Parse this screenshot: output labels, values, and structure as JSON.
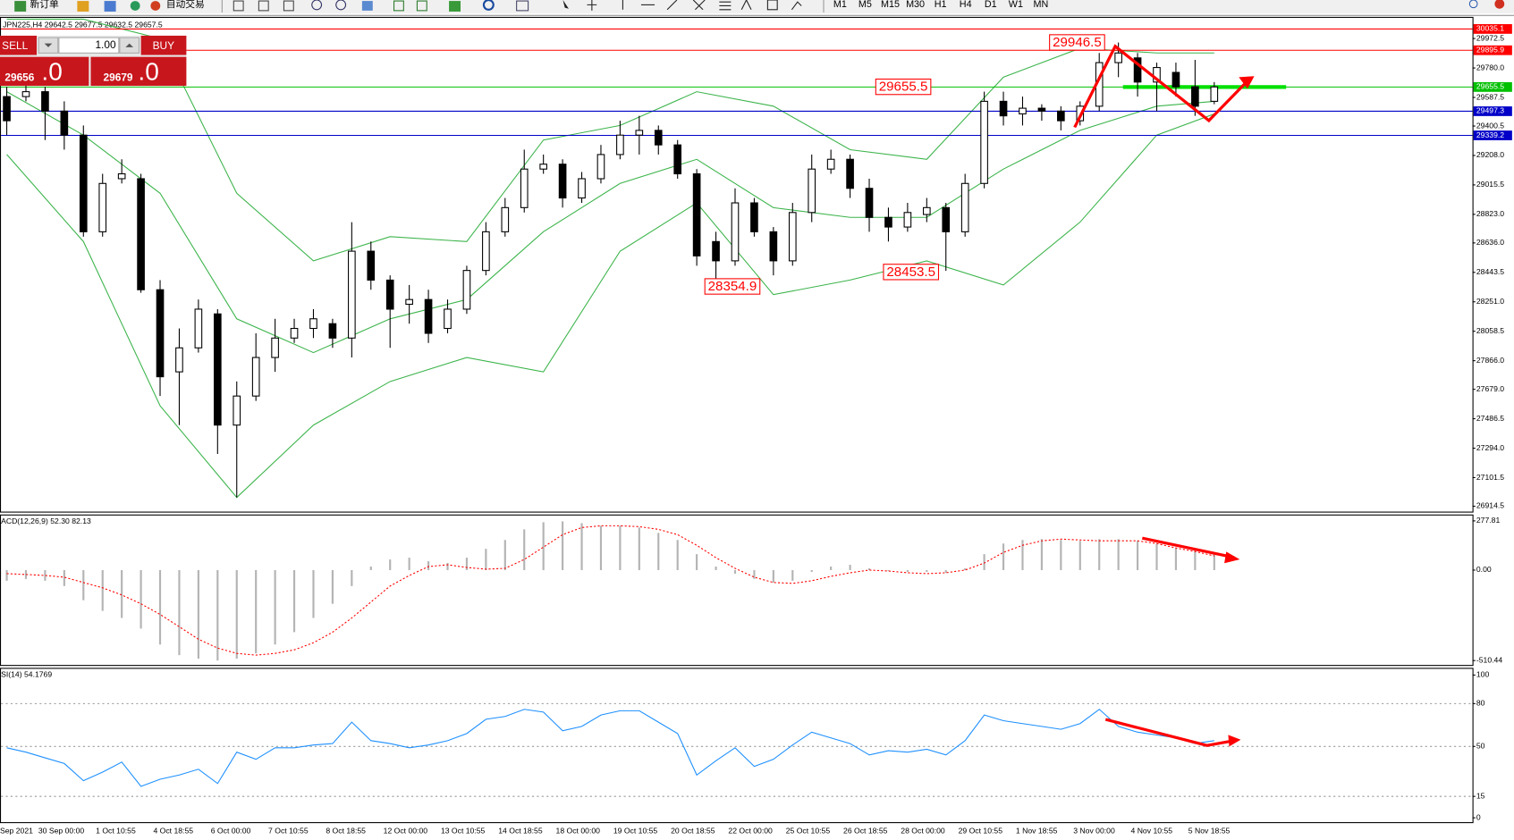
{
  "toolbar": {
    "new_order": "新订单",
    "auto_trading": "自动交易",
    "timeframes": [
      "M1",
      "M5",
      "M15",
      "M30",
      "H1",
      "H4",
      "D1",
      "W1",
      "MN"
    ]
  },
  "trade_panel": {
    "sell_label": "SELL",
    "lot": "1.00",
    "buy_label": "BUY",
    "sell_price": "29656",
    "sell_fraction": ".0",
    "buy_price": "29679",
    "buy_fraction": ".0"
  },
  "chart_data": [
    {
      "type": "candlestick",
      "title": "JPN225,H4  29642.5 29677.5 29632.5 29657.5",
      "categories": [
        "Sep 2021",
        null,
        "30 Sep 00:00",
        null,
        null,
        "1 Oct 10:55",
        null,
        null,
        "4 Oct 18:55",
        null,
        null,
        "6 Oct 00:00",
        null,
        null,
        "7 Oct 10:55",
        null,
        null,
        "8 Oct 18:55",
        null,
        null,
        "12 Oct 00:00",
        null,
        null,
        "13 Oct 10:55",
        null,
        null,
        "14 Oct 18:55",
        null,
        null,
        "18 Oct 00:00",
        null,
        null,
        "19 Oct 10:55",
        null,
        null,
        "20 Oct 18:55",
        null,
        null,
        "22 Oct 00:00",
        null,
        null,
        "25 Oct 10:55",
        null,
        null,
        "26 Oct 18:55",
        null,
        null,
        "28 Oct 00:00",
        null,
        null,
        "29 Oct 10:55",
        null,
        null,
        "1 Nov 18:55",
        null,
        null,
        "3 Nov 00:00",
        null,
        null,
        "4 Nov 10:55",
        null,
        null,
        "5 Nov 18:55",
        null
      ],
      "open": [
        29593,
        29593,
        29625,
        29498,
        29341,
        28709,
        29056,
        29056,
        28330,
        27793,
        27950,
        28172,
        27445,
        27635,
        27887,
        28014,
        28077,
        28108,
        28014,
        28582,
        28393,
        28235,
        28266,
        28077,
        28203,
        28456,
        28709,
        28867,
        29119,
        29151,
        28930,
        29056,
        29214,
        29341,
        29372,
        29277,
        29088,
        28645,
        28519,
        28898,
        28709,
        28519,
        28835,
        29119,
        29183,
        28993,
        28803,
        28740,
        28822,
        28867,
        28709,
        29025,
        29562,
        29480,
        29517,
        29498,
        29435,
        29530,
        29815,
        29846,
        29688,
        29751,
        29657,
        29562
      ],
      "high": [
        29657,
        29688,
        29657,
        29562,
        29404,
        29088,
        29183,
        29088,
        28393,
        28077,
        28266,
        28203,
        27730,
        28045,
        28140,
        28140,
        28203,
        28140,
        28772,
        28645,
        28424,
        28361,
        28330,
        28266,
        28487,
        28772,
        28930,
        29246,
        29214,
        29183,
        29100,
        29277,
        29435,
        29467,
        29404,
        29309,
        29119,
        28709,
        28993,
        28930,
        28740,
        28898,
        29214,
        29246,
        29214,
        29056,
        28867,
        28898,
        28930,
        28898,
        29088,
        29625,
        29625,
        29593,
        29543,
        29530,
        29562,
        29878,
        29946.5,
        29878,
        29815,
        29815,
        29833,
        29688
      ],
      "low": [
        29341,
        29562,
        29309,
        29246,
        28677,
        28677,
        29025,
        28310,
        27635,
        27445,
        27919,
        27256,
        26972,
        27603,
        27793,
        27982,
        28014,
        27950,
        27887,
        28330,
        27950,
        28108,
        27982,
        28045,
        28172,
        28424,
        28677,
        28835,
        29088,
        28867,
        28898,
        29025,
        29183,
        29214,
        29214,
        29056,
        28487,
        28354.9,
        28487,
        28677,
        28424,
        28487,
        28772,
        29088,
        28930,
        28709,
        28645,
        28709,
        28772,
        28453.5,
        28677,
        28993,
        29404,
        29404,
        29435,
        29372,
        29404,
        29498,
        29720,
        29593,
        29498,
        29593,
        29467,
        29543
      ],
      "close": [
        29435,
        29625,
        29498,
        29341,
        28709,
        29025,
        29088,
        28330,
        27761,
        27950,
        28203,
        27445,
        27635,
        27887,
        28014,
        28077,
        28140,
        28014,
        28582,
        28393,
        28203,
        28266,
        28045,
        28203,
        28456,
        28709,
        28867,
        29119,
        29151,
        28930,
        29056,
        29214,
        29341,
        29372,
        29277,
        29088,
        28551,
        28519,
        28898,
        28709,
        28519,
        28835,
        29119,
        29183,
        28993,
        28803,
        28740,
        28835,
        28867,
        28709,
        29025,
        29562,
        29467,
        29517,
        29498,
        29435,
        29530,
        29815,
        29878,
        29688,
        29783,
        29657,
        29530,
        29656
      ],
      "bands": {
        "color": "#3cb44b",
        "x": [
          0,
          4,
          8,
          12,
          16,
          20,
          24,
          28,
          32,
          36,
          40,
          44,
          48,
          52,
          56,
          60,
          63
        ],
        "upper": [
          30099,
          30099,
          29972,
          28961,
          28519,
          28677,
          28645,
          29309,
          29404,
          29625,
          29530,
          29246,
          29183,
          29720,
          29909,
          29878,
          29878
        ],
        "middle": [
          29625,
          29341,
          28961,
          28140,
          27919,
          28140,
          28266,
          28709,
          29025,
          29183,
          28867,
          28803,
          28803,
          29119,
          29372,
          29530,
          29562
        ],
        "lower": [
          29214,
          28645,
          27571,
          26972,
          27445,
          27730,
          27887,
          27793,
          28582,
          28898,
          28298,
          28393,
          28519,
          28361,
          28772,
          29341,
          29480
        ]
      },
      "levels": [
        {
          "value": 30035.1,
          "color": "#ff0000"
        },
        {
          "value": 29895.9,
          "color": "#ff0000"
        },
        {
          "value": 29655.5,
          "color": "#00c000"
        },
        {
          "value": 29497.3,
          "color": "#0000c8"
        },
        {
          "value": 29339.2,
          "color": "#0000c8"
        }
      ],
      "annotations": [
        "29946.5",
        "29655.5",
        "28354.9",
        "28453.5"
      ],
      "ylim": [
        26876,
        30111
      ],
      "yticks": [
        29972.5,
        {
          "value": 29780,
          "label": "29780.0"
        },
        29587.5,
        29400.5,
        {
          "value": 29208,
          "label": "29208.0"
        },
        29015.5,
        {
          "value": 28823,
          "label": "28823.0"
        },
        {
          "value": 28636,
          "label": "28636.0"
        },
        28443.5,
        {
          "value": 28251,
          "label": "28251.0"
        },
        28058.5,
        {
          "value": 27866,
          "label": "27866.0"
        },
        {
          "value": 27679,
          "label": "27679.0"
        },
        27486.5,
        {
          "value": 27294,
          "label": "27294.0"
        },
        27101.5,
        26914.5
      ]
    },
    {
      "type": "macd",
      "title": "ACD(12,26,9) 52.30 82.13",
      "color": "#b4b4b4",
      "values": [
        -60,
        -50,
        -60,
        -90,
        -170,
        -230,
        -270,
        -330,
        -420,
        -480,
        -500,
        -510,
        -500,
        -470,
        -420,
        -350,
        -270,
        -190,
        -90,
        20,
        60,
        70,
        50,
        40,
        70,
        120,
        170,
        230,
        270,
        275,
        265,
        250,
        250,
        240,
        210,
        170,
        90,
        20,
        -20,
        -50,
        -70,
        -60,
        -10,
        20,
        30,
        10,
        -5,
        -10,
        -10,
        -15,
        10,
        90,
        150,
        170,
        175,
        170,
        165,
        175,
        175,
        165,
        150,
        125,
        110,
        90
      ],
      "signal": {
        "color": "#ff0000",
        "values": [
          -20,
          -25,
          -30,
          -40,
          -70,
          -100,
          -140,
          -190,
          -250,
          -320,
          -390,
          -440,
          -470,
          -480,
          -470,
          -450,
          -410,
          -350,
          -270,
          -180,
          -90,
          -30,
          20,
          30,
          15,
          5,
          10,
          60,
          130,
          200,
          240,
          250,
          250,
          245,
          230,
          200,
          140,
          70,
          10,
          -40,
          -70,
          -75,
          -60,
          -35,
          -15,
          0,
          -5,
          -15,
          -20,
          -15,
          0,
          40,
          100,
          140,
          165,
          175,
          170,
          165,
          165,
          165,
          150,
          125,
          105,
          80
        ]
      },
      "ylim": [
        -538,
        311
      ],
      "yticks": [
        277.81,
        {
          "value": 0,
          "label": "0.00"
        },
        -510.44
      ]
    },
    {
      "type": "line",
      "title": "SI(14) 54.1769",
      "color": "#1e90ff",
      "values": [
        49,
        46,
        42,
        38,
        26,
        32,
        39,
        22,
        27,
        30,
        34,
        24,
        46,
        41,
        49,
        49,
        51,
        52,
        67,
        54,
        52,
        49,
        51,
        54,
        59,
        69,
        71,
        76,
        74,
        61,
        64,
        72,
        75,
        75,
        67,
        59,
        30,
        40,
        49,
        36,
        41,
        51,
        60,
        56,
        52,
        44,
        47,
        46,
        48,
        44,
        54,
        72,
        68,
        66,
        64,
        62,
        66,
        76,
        64,
        60,
        58,
        56,
        52,
        54
      ],
      "ylim": [
        -3.4,
        104.7
      ],
      "yticks": [
        100,
        80,
        50,
        15,
        0
      ]
    }
  ]
}
